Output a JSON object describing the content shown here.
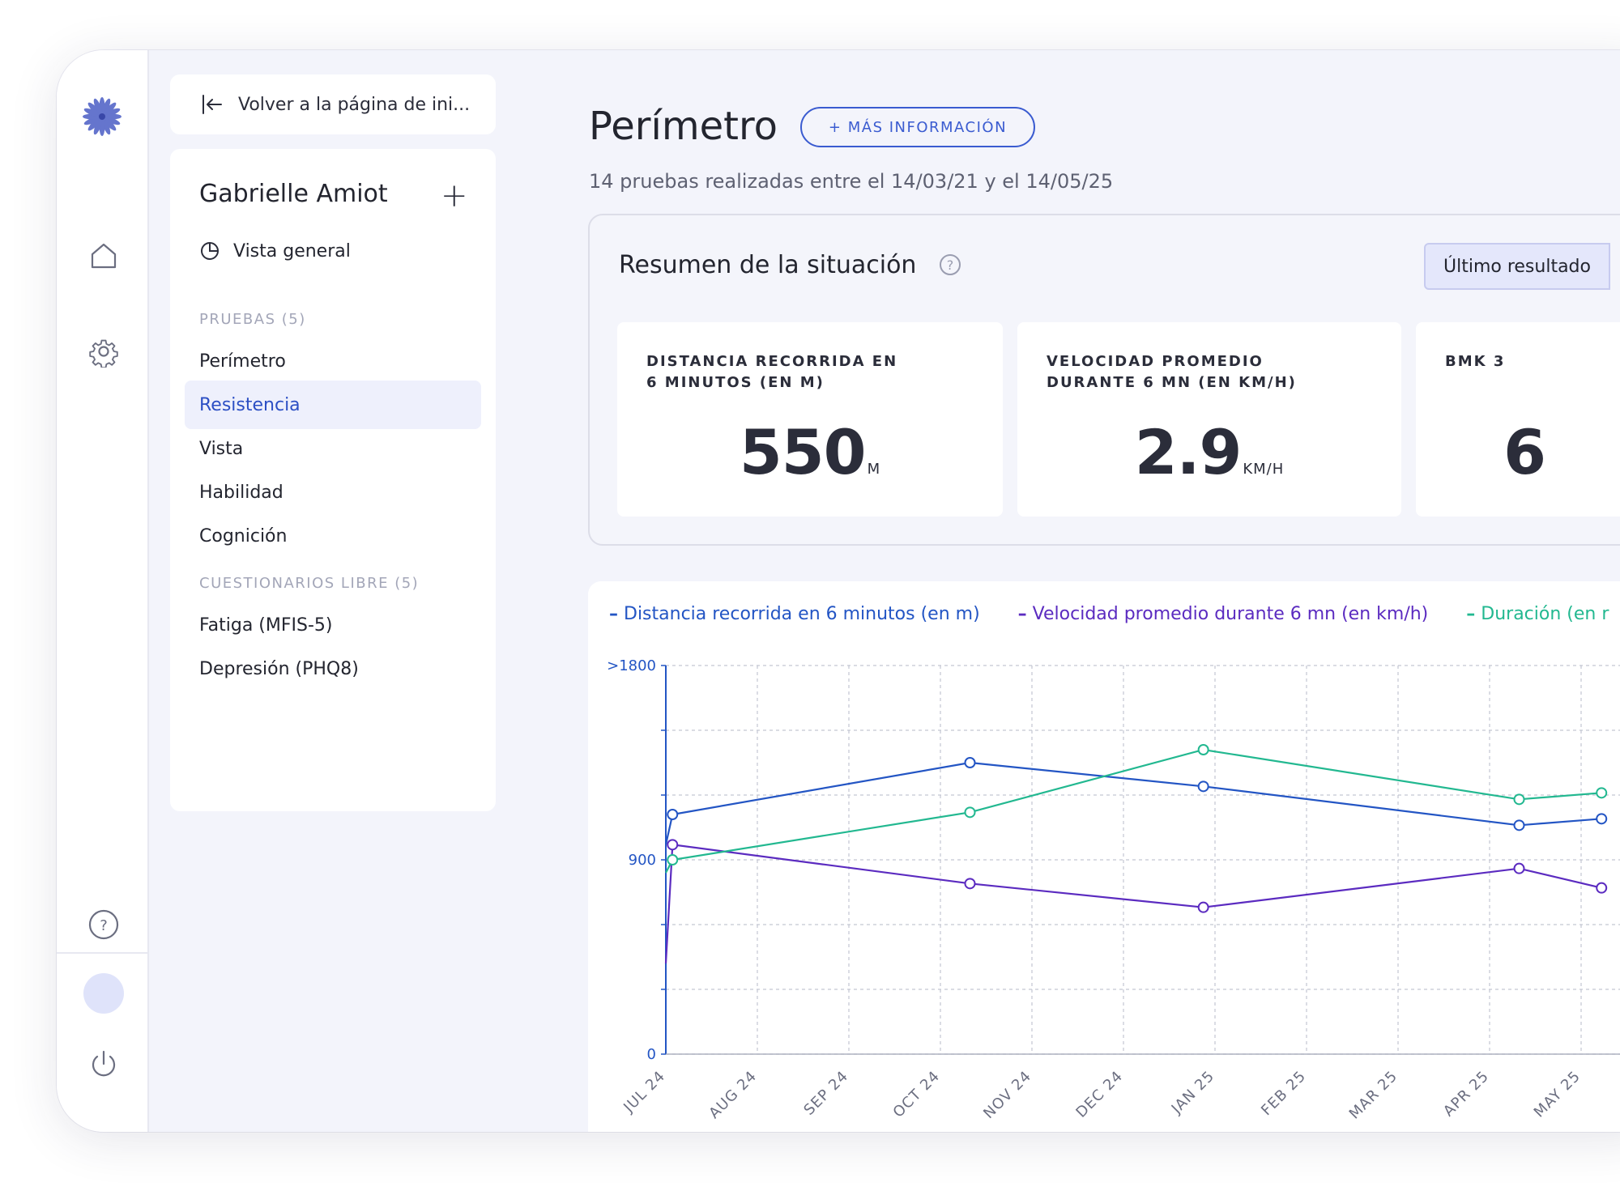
{
  "back": {
    "label": "Volver a la página de ini..."
  },
  "patient": {
    "name": "Gabrielle Amiot",
    "overview": "Vista general",
    "tests_header": "PRUEBAS (5)",
    "tests": [
      "Perímetro",
      "Resistencia",
      "Vista",
      "Habilidad",
      "Cognición"
    ],
    "active_test": "Resistencia",
    "questionnaires_header": "CUESTIONARIOS LIBRE (5)",
    "questionnaires": [
      "Fatiga (MFIS-5)",
      "Depresión (PHQ8)"
    ]
  },
  "main": {
    "title": "Perímetro",
    "more_button": "+ MÁS INFORMACIÓN",
    "subtitle": "14 pruebas realizadas entre el 14/03/21 y el 14/05/25"
  },
  "summary": {
    "title": "Resumen de la situación",
    "toggle": "Último resultado",
    "metrics": [
      {
        "label": "DISTANCIA RECORRIDA EN 6 MINUTOS (EN M)",
        "value": "550",
        "unit": "M"
      },
      {
        "label": "VELOCIDAD PROMEDIO DURANTE 6 MN (EN KM/H)",
        "value": "2.9",
        "unit": "KM/H"
      },
      {
        "label": "BMK 3",
        "value": "6",
        "unit": ""
      }
    ]
  },
  "colors": {
    "accent": "#3a5bd0",
    "series_distance": "#2355c4",
    "series_speed": "#5b2bc0",
    "series_duration": "#22b890"
  },
  "chart_data": {
    "type": "line",
    "legend": [
      "Distancia recorrida en 6 minutos (en m)",
      "Velocidad promedio durante 6 mn (en km/h)",
      "Duración (en r"
    ],
    "y_tick_labels": [
      ">1800",
      "900",
      "0"
    ],
    "ylim": [
      0,
      1800
    ],
    "x_tick_labels": [
      "JUL 24",
      "AUG 24",
      "SEP 24",
      "OCT 24",
      "NOV 24",
      "DEC 24",
      "JAN 25",
      "FEB 25",
      "MAR 25",
      "APR 25",
      "MAY 25"
    ],
    "series": [
      {
        "name": "Distancia recorrida en 6 minutos (en m)",
        "x": [
          0.0,
          0.25,
          3.5,
          6.05,
          9.5,
          10.4
        ],
        "y": [
          970,
          1110,
          1350,
          1240,
          1060,
          1090
        ]
      },
      {
        "name": "Velocidad promedio durante 6 mn (en km/h)",
        "x": [
          0.0,
          0.25,
          3.5,
          6.05,
          9.5,
          10.4
        ],
        "y": [
          420,
          970,
          790,
          680,
          860,
          770
        ]
      },
      {
        "name": "Duración (en r",
        "x": [
          0.0,
          0.25,
          3.5,
          6.05,
          9.5,
          10.4
        ],
        "y": [
          840,
          900,
          1120,
          1410,
          1180,
          1210
        ]
      }
    ],
    "grid": true
  }
}
